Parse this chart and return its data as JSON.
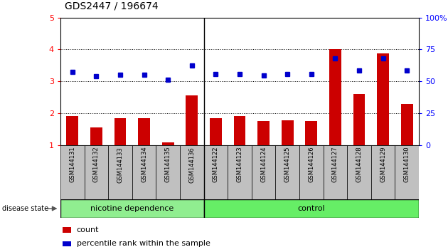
{
  "title": "GDS2447 / 196674",
  "samples": [
    "GSM144131",
    "GSM144132",
    "GSM144133",
    "GSM144134",
    "GSM144135",
    "GSM144136",
    "GSM144122",
    "GSM144123",
    "GSM144124",
    "GSM144125",
    "GSM144126",
    "GSM144127",
    "GSM144128",
    "GSM144129",
    "GSM144130"
  ],
  "count_values": [
    1.9,
    1.55,
    1.85,
    1.85,
    1.08,
    2.55,
    1.85,
    1.9,
    1.75,
    1.78,
    1.75,
    4.02,
    2.6,
    3.88,
    2.28
  ],
  "percentile_values": [
    3.3,
    3.15,
    3.2,
    3.2,
    3.05,
    3.5,
    3.22,
    3.22,
    3.18,
    3.22,
    3.22,
    3.72,
    3.35,
    3.72,
    3.35
  ],
  "nicotine_count": 6,
  "control_count": 9,
  "ylim_left": [
    1,
    5
  ],
  "ylim_right": [
    0,
    100
  ],
  "yticks_left": [
    1,
    2,
    3,
    4,
    5
  ],
  "yticks_right": [
    0,
    25,
    50,
    75,
    100
  ],
  "yticklabels_right": [
    "0",
    "25",
    "50",
    "75",
    "100%"
  ],
  "bar_color": "#CC0000",
  "dot_color": "#0000CC",
  "background_color": "#ffffff",
  "label_bg_color": "#C0C0C0",
  "group_color_nicotine": "#90EE90",
  "group_color_control": "#66EE66",
  "group_border_color": "#000000",
  "title_fontsize": 10,
  "axis_fontsize": 8,
  "sample_fontsize": 6,
  "group_fontsize": 8,
  "legend_fontsize": 8,
  "disease_state_label": "disease state",
  "nicotine_label": "nicotine dependence",
  "control_label": "control",
  "legend_count": "count",
  "legend_percentile": "percentile rank within the sample",
  "bar_width": 0.5
}
